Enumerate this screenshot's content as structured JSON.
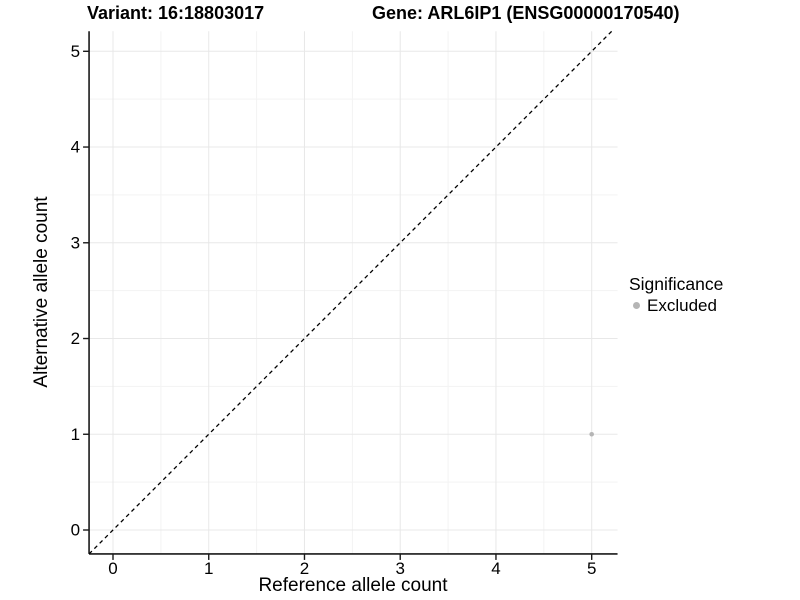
{
  "chart_data": {
    "type": "scatter",
    "title_parts": [
      "Variant: 16:18803017",
      "Gene: ARL6IP1 (ENSG00000170540)"
    ],
    "xlabel": "Reference allele count",
    "ylabel": "Alternative allele count",
    "xlim": [
      -0.25,
      5.27
    ],
    "ylim": [
      -0.25,
      5.21
    ],
    "xticks": [
      0,
      1,
      2,
      3,
      4,
      5
    ],
    "yticks": [
      0,
      1,
      2,
      3,
      4,
      5
    ],
    "minor_ticks": [
      0.5,
      1.5,
      2.5,
      3.5,
      4.5
    ],
    "grid": "major+minor",
    "series": [
      {
        "name": "Excluded",
        "color": "#b5b5b5",
        "points": [
          {
            "x": 5,
            "y": 1
          }
        ]
      }
    ],
    "reference_line": {
      "type": "identity",
      "slope": 1,
      "intercept": 0,
      "style": "dashed",
      "color": "#000000"
    },
    "legend": {
      "title": "Significance",
      "position": "right",
      "entries": [
        {
          "label": "Excluded",
          "color": "#b5b5b5"
        }
      ]
    },
    "colors": {
      "background": "#ffffff",
      "grid_major": "#e8e8e8",
      "grid_minor": "#f3f3f3",
      "axis_line": "#1a1a1a",
      "text": "#000000"
    }
  }
}
